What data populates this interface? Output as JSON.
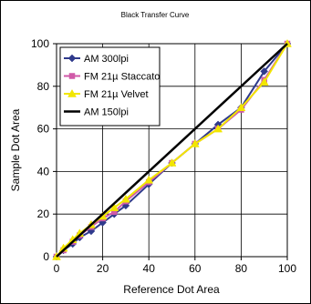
{
  "chart_data": {
    "type": "line",
    "title": "Black Transfer Curve",
    "xlabel": "Reference Dot Area",
    "ylabel": "Sample Dot Area",
    "xlim": [
      0,
      100
    ],
    "ylim": [
      0,
      100
    ],
    "xticks": [
      0,
      20,
      40,
      60,
      80,
      100
    ],
    "yticks": [
      0,
      20,
      40,
      60,
      80,
      100
    ],
    "grid": true,
    "legend_position": "top-left",
    "series": [
      {
        "name": "AM 300lpi",
        "color": "#2f3a8c",
        "marker": "diamond",
        "x": [
          0,
          3,
          7,
          10,
          15,
          20,
          25,
          30,
          40,
          50,
          60,
          70,
          80,
          90,
          100
        ],
        "y": [
          0,
          3,
          6,
          9,
          12,
          16,
          20,
          24,
          34,
          44,
          53,
          62,
          70,
          87,
          100
        ]
      },
      {
        "name": "FM 21µ Staccato",
        "color": "#d05aa8",
        "marker": "square",
        "x": [
          0,
          3,
          7,
          10,
          15,
          20,
          25,
          30,
          40,
          50,
          60,
          70,
          80,
          90,
          100
        ],
        "y": [
          0,
          3,
          7,
          10,
          14,
          18,
          21,
          26,
          35,
          44,
          53,
          60,
          69,
          83,
          100
        ]
      },
      {
        "name": "FM 21µ Velvet",
        "color": "#f2e600",
        "marker": "triangle",
        "x": [
          0,
          3,
          7,
          10,
          15,
          20,
          25,
          30,
          40,
          50,
          60,
          70,
          80,
          90,
          100
        ],
        "y": [
          0,
          4,
          8,
          11,
          15,
          19,
          23,
          27,
          36,
          44,
          53,
          60,
          70,
          82,
          100
        ]
      },
      {
        "name": "AM 150lpi",
        "color": "#000000",
        "marker": "none",
        "x": [
          0,
          100
        ],
        "y": [
          0,
          100
        ]
      }
    ]
  }
}
